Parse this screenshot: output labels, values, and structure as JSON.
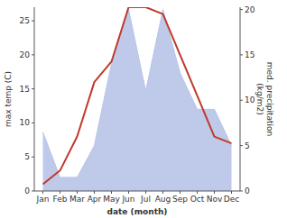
{
  "chart_data": {
    "type": "line",
    "xlabel": "date (month)",
    "ylabel": "max temp (C)",
    "y2label": "med. precipitation\n(kg/m2)",
    "categories": [
      "Jan",
      "Feb",
      "Mar",
      "Apr",
      "May",
      "Jun",
      "Jul",
      "Aug",
      "Sep",
      "Oct",
      "Nov",
      "Dec"
    ],
    "series": [
      {
        "type": "area",
        "axis": "y2",
        "color": "#b8c4e8",
        "values": [
          6.5,
          1.5,
          1.5,
          5.0,
          14.0,
          20.0,
          11.0,
          20.0,
          13.0,
          9.0,
          9.0,
          5.0
        ]
      },
      {
        "type": "line",
        "color": "#c0392b",
        "values": [
          1,
          3,
          8,
          16,
          19,
          27,
          27,
          26,
          20,
          14,
          8,
          7
        ]
      }
    ],
    "ylim": [
      0,
      27
    ],
    "yticks": [
      0,
      5,
      10,
      15,
      20,
      25
    ],
    "y2lim": [
      0,
      20.25
    ],
    "y2ticks": [
      0,
      5,
      10,
      15,
      20
    ],
    "grid": false
  }
}
